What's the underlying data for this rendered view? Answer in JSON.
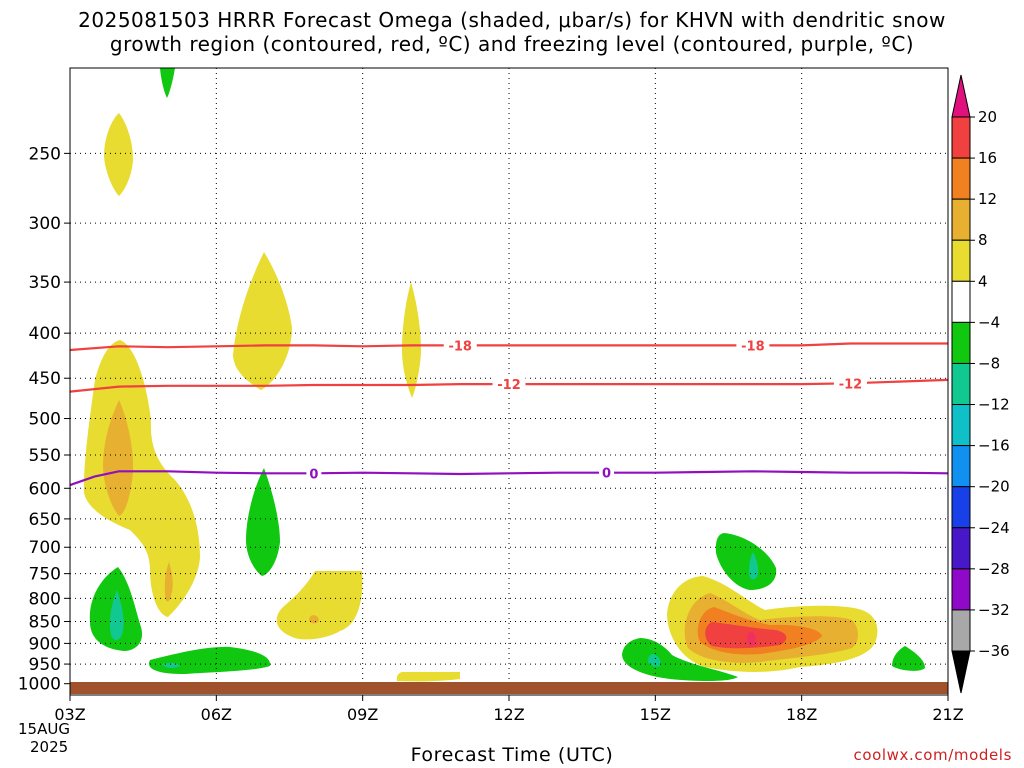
{
  "title_line1": "2025081503 HRRR Forecast Omega (shaded, μbar/s) for KHVN with dendritic snow",
  "title_line2": "growth region (contoured, red, ºC) and freezing level (contoured, purple, ºC)",
  "x_axis_label": "Forecast Time (UTC)",
  "date_label_line1": "15AUG",
  "date_label_line2": "2025",
  "credit": "coolwx.com/models",
  "chart_data": {
    "type": "heatmap",
    "title": "2025081503 HRRR Forecast Omega (shaded, μbar/s) for KHVN with dendritic snow growth region (contoured, red, ºC) and freezing level (contoured, purple, ºC)",
    "xlabel": "Forecast Time (UTC)",
    "x_ticks": [
      "03Z",
      "06Z",
      "09Z",
      "12Z",
      "15Z",
      "18Z",
      "21Z"
    ],
    "x_tick_hours": [
      3,
      6,
      9,
      12,
      15,
      18,
      21
    ],
    "xlim": [
      3,
      21
    ],
    "y_scale": "log-pressure (inverted)",
    "ylim": [
      1030,
      200
    ],
    "y_ticks": [
      250,
      300,
      350,
      400,
      450,
      500,
      550,
      600,
      650,
      700,
      750,
      800,
      850,
      900,
      950,
      1000
    ],
    "grid": true,
    "surface_pressure": 1013,
    "colorbar": {
      "labels": [
        "20",
        "16",
        "12",
        "8",
        "4",
        "−4",
        "−8",
        "−12",
        "−16",
        "−20",
        "−24",
        "−28",
        "−32",
        "−36"
      ],
      "colors": [
        "#f03060",
        "#f04040",
        "#f08020",
        "#e8b030",
        "#e8dc30",
        "#ffffff",
        "#10c810",
        "#10c890",
        "#10c0c8",
        "#1090f0",
        "#1840e8",
        "#4818c8",
        "#9008c8",
        "#a8a8a8",
        "#000000"
      ],
      "top_arrow_color": "#e0107c",
      "bottom_arrow_color": "#000000"
    },
    "contours": [
      {
        "name": "-18",
        "color": "#f04040",
        "label_positions_hours": [
          11,
          17
        ],
        "hours": [
          3,
          4,
          5,
          6,
          7,
          8,
          9,
          10,
          11,
          12,
          13,
          14,
          15,
          16,
          17,
          18,
          19,
          20,
          21
        ],
        "pressure": [
          418,
          414,
          415,
          414,
          413,
          413,
          414,
          413,
          413,
          413,
          413,
          413,
          413,
          413,
          413,
          413,
          411,
          411,
          411
        ]
      },
      {
        "name": "-12",
        "color": "#f04040",
        "label_positions_hours": [
          12,
          19
        ],
        "hours": [
          3,
          4,
          5,
          6,
          7,
          8,
          9,
          10,
          11,
          12,
          13,
          14,
          15,
          16,
          17,
          18,
          19,
          20,
          21
        ],
        "pressure": [
          466,
          460,
          459,
          459,
          459,
          458,
          458,
          458,
          457,
          457,
          457,
          457,
          457,
          457,
          457,
          457,
          456,
          454,
          452
        ]
      },
      {
        "name": "0",
        "color": "#9010c0",
        "label_positions_hours": [
          8,
          14
        ],
        "hours": [
          3,
          3.5,
          4,
          5,
          6,
          7,
          8,
          9,
          10,
          11,
          12,
          13,
          14,
          15,
          16,
          17,
          18,
          19,
          20,
          21
        ],
        "pressure": [
          595,
          582,
          574,
          574,
          576,
          577,
          577,
          576,
          577,
          578,
          577,
          576,
          576,
          576,
          575,
          574,
          575,
          576,
          576,
          577
        ]
      }
    ],
    "omega_regions": [
      {
        "level": "4 to 8",
        "color": "#e8dc30",
        "center_hour": 4.2,
        "center_pressure": 255,
        "peak": 6
      },
      {
        "level": "4 to 8",
        "color": "#e8dc30",
        "center_hour": 7.1,
        "center_pressure": 410,
        "peak": 6
      },
      {
        "level": "4 to 8",
        "color": "#e8dc30",
        "center_hour": 10.0,
        "center_pressure": 430,
        "peak": 5
      },
      {
        "level": "4 to 12",
        "color": "#e8b030",
        "center_hour": 4.1,
        "center_pressure": 570,
        "peak": 10
      },
      {
        "level": "4 to 8",
        "color": "#e8b030",
        "center_hour": 5.0,
        "center_pressure": 770,
        "peak": 8
      },
      {
        "level": "4 to 8",
        "color": "#e8b030",
        "center_hour": 8.0,
        "center_pressure": 850,
        "peak": 7
      },
      {
        "level": "4 to 20",
        "color": "#f03060",
        "center_hour": 17.0,
        "center_pressure": 900,
        "peak": 20
      },
      {
        "level": "-4 to -8",
        "color": "#10c810",
        "center_hour": 3.4,
        "center_pressure": 230,
        "peak": -6
      },
      {
        "level": "-4 to -12",
        "color": "#10c890",
        "center_hour": 4.0,
        "center_pressure": 850,
        "peak": -10
      },
      {
        "level": "-4 to -8",
        "color": "#10c810",
        "center_hour": 7.0,
        "center_pressure": 670,
        "peak": -6
      },
      {
        "level": "-4 to -12",
        "color": "#10c890",
        "center_hour": 6.1,
        "center_pressure": 970,
        "peak": -9
      },
      {
        "level": "-4 to -12",
        "color": "#10c890",
        "center_hour": 16.8,
        "center_pressure": 720,
        "peak": -10
      },
      {
        "level": "-4 to -12",
        "color": "#10c890",
        "center_hour": 15.0,
        "center_pressure": 960,
        "peak": -10
      },
      {
        "level": "-4 to -8",
        "color": "#10c810",
        "center_hour": 20.1,
        "center_pressure": 960,
        "peak": -6
      },
      {
        "level": "4 to 8",
        "color": "#e8dc30",
        "center_hour": 10.4,
        "center_pressure": 1005,
        "peak": 5
      }
    ]
  }
}
